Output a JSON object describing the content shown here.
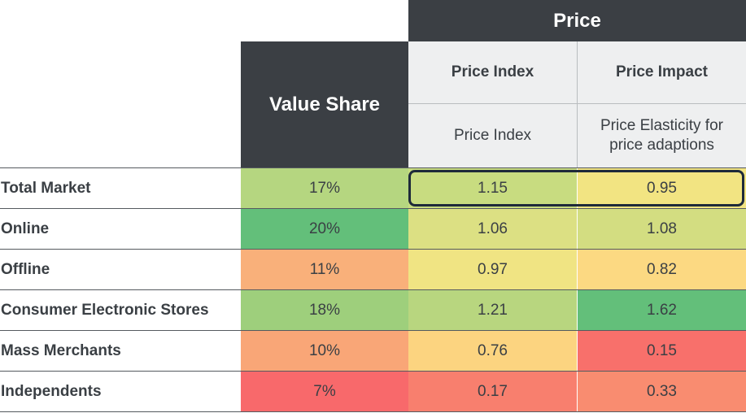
{
  "chart_data": {
    "type": "table",
    "header": {
      "group": "Price",
      "value_share": "Value Share",
      "price_index": "Price Index",
      "price_impact": "Price Impact",
      "price_index_sub": "Price Index",
      "price_impact_sub": "Price Elasticity for price adaptions"
    },
    "rows": [
      {
        "label": "Total Market",
        "cells": [
          {
            "text": "17%",
            "color": "#b5d680"
          },
          {
            "text": "1.15",
            "color": "#c8dc80"
          },
          {
            "text": "0.95",
            "color": "#f2e482"
          }
        ]
      },
      {
        "label": "Online",
        "cells": [
          {
            "text": "20%",
            "color": "#63bf7a"
          },
          {
            "text": "1.06",
            "color": "#dce083"
          },
          {
            "text": "1.08",
            "color": "#d3dd81"
          }
        ]
      },
      {
        "label": "Offline",
        "cells": [
          {
            "text": "11%",
            "color": "#f9b07a"
          },
          {
            "text": "0.97",
            "color": "#f0e483"
          },
          {
            "text": "0.82",
            "color": "#fcd982"
          }
        ]
      },
      {
        "label": "Consumer Electronic Stores",
        "cells": [
          {
            "text": "18%",
            "color": "#9ecf7c"
          },
          {
            "text": "1.21",
            "color": "#b8d67f"
          },
          {
            "text": "1.62",
            "color": "#63bf7a"
          }
        ]
      },
      {
        "label": "Mass Merchants",
        "cells": [
          {
            "text": "10%",
            "color": "#f9a677"
          },
          {
            "text": "0.76",
            "color": "#fcd480"
          },
          {
            "text": "0.15",
            "color": "#f8706b"
          }
        ]
      },
      {
        "label": "Independents",
        "cells": [
          {
            "text": "7%",
            "color": "#f8696b"
          },
          {
            "text": "0.17",
            "color": "#f87f6e"
          },
          {
            "text": "0.33",
            "color": "#f98c70"
          }
        ]
      }
    ],
    "highlighted_row": "Total Market"
  }
}
